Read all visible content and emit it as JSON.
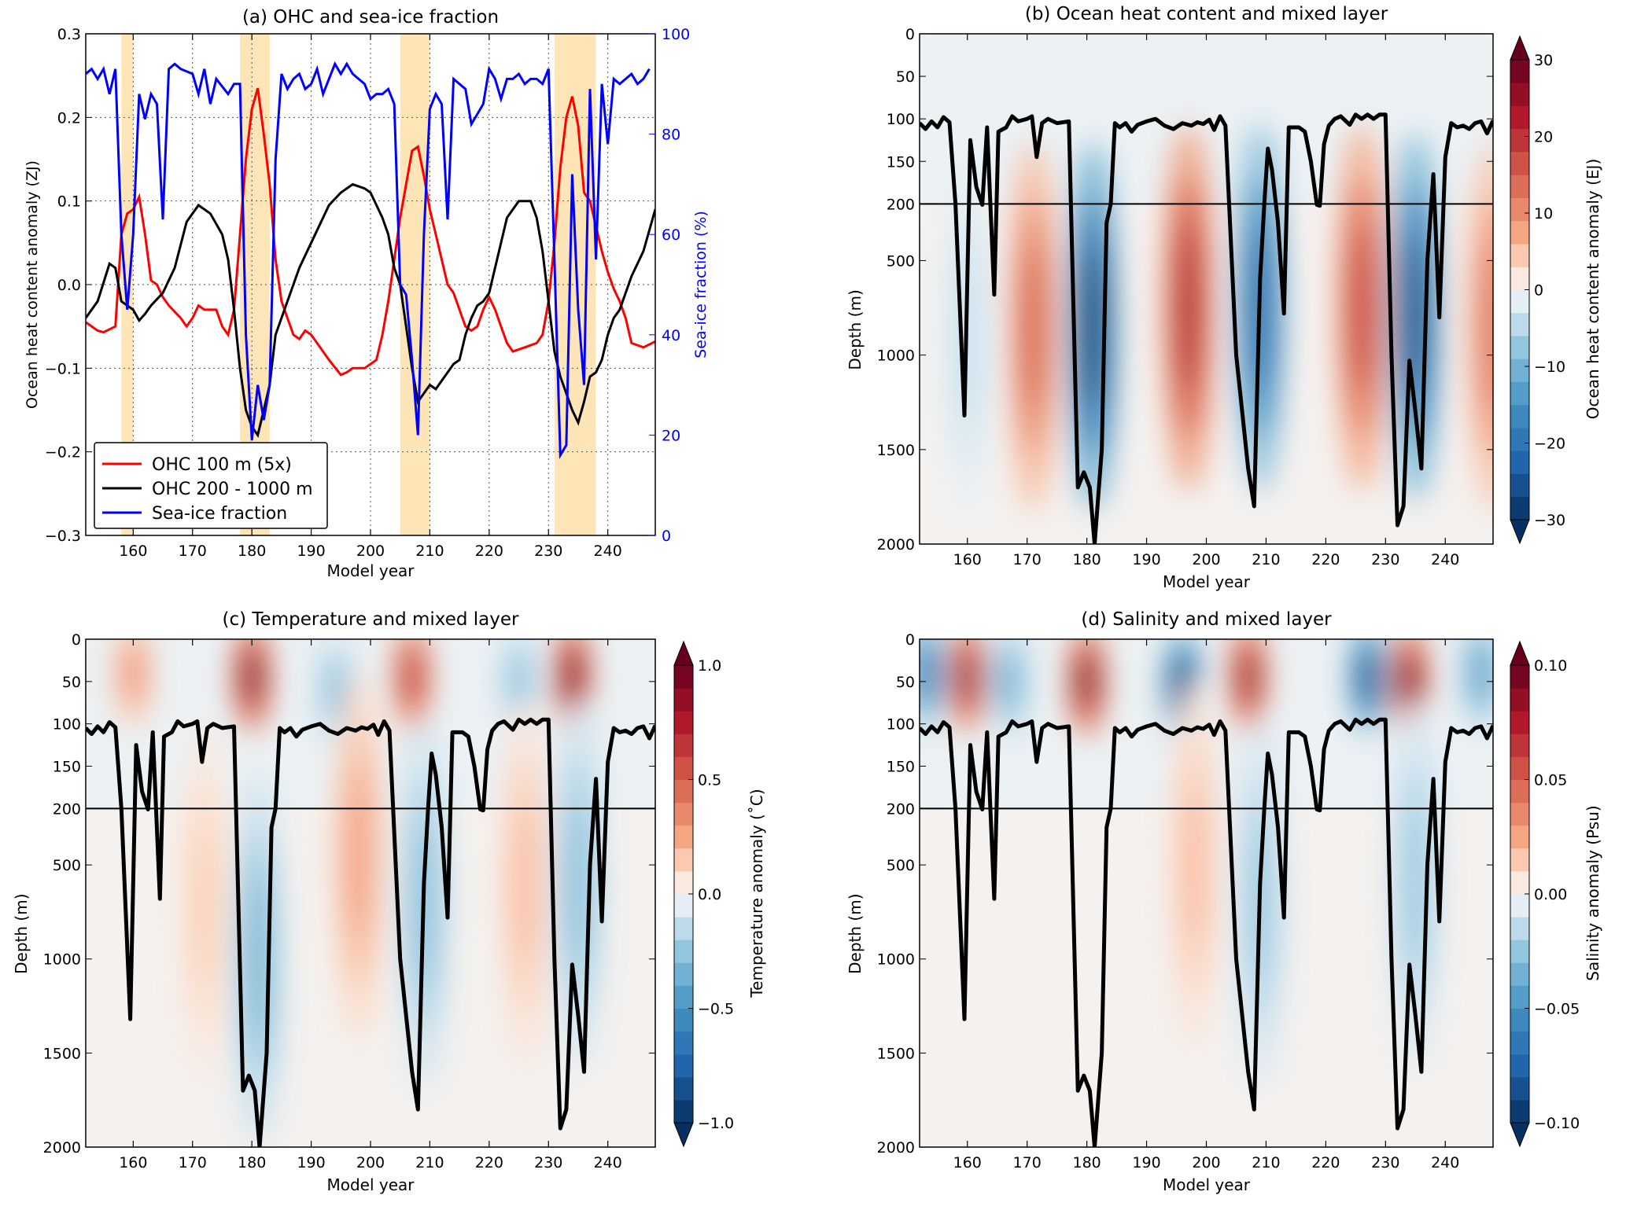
{
  "chart_data": [
    {
      "type": "line",
      "title": "(a) OHC and sea-ice fraction",
      "xlabel": "Model year",
      "ylabel": "Ocean heat content anomaly (ZJ)",
      "ylabel_right": "Sea-ice fraction (%)",
      "xlim": [
        152,
        248
      ],
      "ylim": [
        -0.3,
        0.3
      ],
      "ylim_right": [
        0,
        100
      ],
      "grid": true,
      "legend_placement": "lower-left",
      "xticks": [
        160,
        170,
        180,
        190,
        200,
        210,
        220,
        230,
        240
      ],
      "xtick_labels": [
        "160",
        "170",
        "180",
        "190",
        "200",
        "210",
        "220",
        "230",
        "240"
      ],
      "yticks": [
        -0.3,
        -0.2,
        -0.1,
        0.0,
        0.1,
        0.2,
        0.3
      ],
      "ytick_labels": [
        "−0.3",
        "−0.2",
        "−0.1",
        "0.0",
        "0.1",
        "0.2",
        "0.3"
      ],
      "yticks_right": [
        0,
        20,
        40,
        60,
        80,
        100
      ],
      "ytick_labels_right": [
        "0",
        "20",
        "40",
        "60",
        "80",
        "100"
      ],
      "shaded_periods": [
        [
          158,
          160
        ],
        [
          178,
          183
        ],
        [
          205,
          210
        ],
        [
          231,
          238
        ]
      ],
      "shade_color": "#fde5b8",
      "series": [
        {
          "name": "OHC 100 m (5x)",
          "color": "#ff0000",
          "axis": "left",
          "x": [
            152,
            154,
            155,
            157,
            158,
            159,
            160,
            161,
            162,
            163,
            164,
            165,
            166,
            168,
            169,
            170,
            171,
            172,
            174,
            175,
            176,
            177,
            178,
            179,
            180,
            181,
            182,
            183,
            184,
            185,
            186,
            187,
            188,
            189,
            190,
            192,
            193,
            195,
            196,
            197,
            199,
            201,
            202,
            203,
            204,
            205,
            206,
            207,
            208,
            209,
            210,
            211,
            212,
            213,
            214,
            215,
            216,
            217,
            218,
            219,
            220,
            221,
            222,
            223,
            224,
            226,
            228,
            229,
            230,
            231,
            232,
            233,
            234,
            235,
            236,
            237,
            238,
            239,
            240,
            241,
            242,
            243,
            244,
            246,
            248
          ],
          "y": [
            -0.045,
            -0.055,
            -0.057,
            -0.05,
            0.06,
            0.085,
            0.09,
            0.105,
            0.06,
            0.005,
            0.0,
            -0.015,
            -0.025,
            -0.04,
            -0.05,
            -0.04,
            -0.025,
            -0.03,
            -0.03,
            -0.05,
            -0.06,
            -0.03,
            0.06,
            0.15,
            0.21,
            0.235,
            0.18,
            0.12,
            0.03,
            -0.02,
            -0.04,
            -0.06,
            -0.065,
            -0.055,
            -0.06,
            -0.08,
            -0.09,
            -0.108,
            -0.105,
            -0.1,
            -0.1,
            -0.09,
            -0.06,
            -0.02,
            0.03,
            0.08,
            0.12,
            0.16,
            0.165,
            0.13,
            0.09,
            0.06,
            0.03,
            0.0,
            -0.01,
            -0.03,
            -0.05,
            -0.055,
            -0.05,
            -0.03,
            -0.015,
            -0.03,
            -0.05,
            -0.07,
            -0.08,
            -0.075,
            -0.07,
            -0.06,
            -0.02,
            0.05,
            0.14,
            0.2,
            0.225,
            0.19,
            0.11,
            0.1,
            0.07,
            0.04,
            0.015,
            -0.005,
            -0.02,
            -0.04,
            -0.07,
            -0.075,
            -0.068
          ]
        },
        {
          "name": "OHC 200 - 1000 m",
          "color": "#000000",
          "axis": "left",
          "x": [
            152,
            154,
            156,
            157,
            158,
            160,
            161,
            162,
            163,
            165,
            167,
            169,
            171,
            173,
            175,
            176,
            177,
            178,
            179,
            180,
            181,
            182,
            183,
            184,
            186,
            188,
            190,
            193,
            195,
            197,
            199,
            200,
            202,
            203,
            204,
            205,
            207,
            208,
            209,
            210,
            211,
            212,
            214,
            215,
            216,
            217,
            218,
            219,
            220,
            222,
            223,
            225,
            227,
            228,
            229,
            230,
            231,
            232,
            234,
            235,
            236,
            237,
            238,
            239,
            240,
            241,
            242,
            244,
            246,
            248
          ],
          "y": [
            -0.04,
            -0.02,
            0.025,
            0.02,
            -0.02,
            -0.03,
            -0.043,
            -0.035,
            -0.025,
            -0.01,
            0.02,
            0.075,
            0.095,
            0.085,
            0.06,
            0.03,
            -0.03,
            -0.1,
            -0.15,
            -0.17,
            -0.18,
            -0.15,
            -0.12,
            -0.06,
            -0.02,
            0.02,
            0.05,
            0.095,
            0.11,
            0.12,
            0.115,
            0.11,
            0.08,
            0.06,
            0.02,
            0.0,
            -0.1,
            -0.14,
            -0.13,
            -0.12,
            -0.125,
            -0.115,
            -0.095,
            -0.09,
            -0.06,
            -0.04,
            -0.025,
            -0.02,
            -0.01,
            0.05,
            0.08,
            0.1,
            0.1,
            0.08,
            0.04,
            -0.02,
            -0.08,
            -0.11,
            -0.15,
            -0.165,
            -0.14,
            -0.11,
            -0.105,
            -0.09,
            -0.06,
            -0.04,
            -0.03,
            0.01,
            0.04,
            0.09
          ]
        },
        {
          "name": "Sea-ice fraction",
          "color": "#0000ff",
          "axis": "right",
          "x": [
            152,
            153,
            154,
            155,
            156,
            157,
            158,
            159,
            160,
            161,
            162,
            163,
            164,
            165,
            166,
            167,
            168,
            170,
            171,
            172,
            173,
            174,
            176,
            177,
            178,
            179,
            180,
            181,
            182,
            183,
            184,
            185,
            186,
            187,
            188,
            189,
            190,
            191,
            192,
            193,
            194,
            195,
            196,
            197,
            198,
            199,
            200,
            201,
            202,
            203,
            204,
            205,
            206,
            207,
            208,
            209,
            210,
            211,
            212,
            213,
            214,
            215,
            216,
            217,
            218,
            219,
            220,
            221,
            222,
            223,
            224,
            225,
            226,
            227,
            228,
            229,
            230,
            231,
            232,
            233,
            234,
            235,
            236,
            237,
            238,
            239,
            240,
            241,
            242,
            243,
            244,
            245,
            246,
            247
          ],
          "y": [
            92,
            93,
            91,
            93,
            88,
            93,
            60,
            45,
            60,
            88,
            83,
            88,
            86,
            63,
            93,
            94,
            93,
            92,
            88,
            93,
            86,
            91,
            88,
            90,
            90,
            40,
            19,
            30,
            23,
            30,
            75,
            92,
            89,
            91,
            92,
            89,
            90,
            93,
            88,
            91,
            94,
            92,
            94,
            92,
            91,
            90,
            87,
            88,
            88,
            89,
            86,
            50,
            48,
            35,
            20,
            60,
            85,
            88,
            86,
            63,
            91,
            90,
            89,
            82,
            84,
            86,
            93,
            91,
            87,
            91,
            91,
            92,
            90,
            91,
            91,
            90,
            93,
            55,
            16,
            18,
            72,
            45,
            30,
            89,
            55,
            90,
            78,
            91,
            90,
            91,
            92,
            90,
            91,
            93
          ]
        }
      ]
    },
    {
      "type": "heatmap",
      "title": "(b) Ocean heat content and mixed layer",
      "xlabel": "Model year",
      "ylabel": "Depth (m)",
      "colorbar_label": "Ocean heat content anomaly (EJ)",
      "xlim": [
        152,
        248
      ],
      "ylim": [
        2000,
        0
      ],
      "depth_axis_break": 200,
      "colormap": "RdBu_r",
      "clim": [
        -30,
        30
      ],
      "xticks": [
        160,
        170,
        180,
        190,
        200,
        210,
        220,
        230,
        240
      ],
      "xtick_labels": [
        "160",
        "170",
        "180",
        "190",
        "200",
        "210",
        "220",
        "230",
        "240"
      ],
      "yticks": [
        0,
        50,
        100,
        150,
        200,
        500,
        1000,
        1500,
        2000
      ],
      "ytick_labels": [
        "0",
        "50",
        "100",
        "150",
        "200",
        "500",
        "1000",
        "1500",
        "2000"
      ],
      "cbar_ticks": [
        -30,
        -20,
        -10,
        0,
        10,
        20,
        30
      ],
      "cbar_tick_labels": [
        "−30",
        "−20",
        "−10",
        "0",
        "10",
        "20",
        "30"
      ],
      "anomaly_centers": [
        {
          "year": 171,
          "depth": 850,
          "value": 16
        },
        {
          "year": 181,
          "depth": 850,
          "value": -30
        },
        {
          "year": 197,
          "depth": 750,
          "value": 24
        },
        {
          "year": 209,
          "depth": 750,
          "value": -24
        },
        {
          "year": 226,
          "depth": 750,
          "value": 20
        },
        {
          "year": 235,
          "depth": 800,
          "value": -28
        },
        {
          "year": 248,
          "depth": 850,
          "value": 14
        },
        {
          "year": 160,
          "depth": 900,
          "value": -4
        }
      ]
    },
    {
      "type": "heatmap",
      "title": "(c) Temperature and mixed layer",
      "xlabel": "Model year",
      "ylabel": "Depth (m)",
      "colorbar_label": "Temperature anomaly (˚C)",
      "xlim": [
        152,
        248
      ],
      "ylim": [
        2000,
        0
      ],
      "depth_axis_break": 200,
      "colormap": "RdBu_r",
      "clim": [
        -1.0,
        1.0
      ],
      "xticks": [
        160,
        170,
        180,
        190,
        200,
        210,
        220,
        230,
        240
      ],
      "xtick_labels": [
        "160",
        "170",
        "180",
        "190",
        "200",
        "210",
        "220",
        "230",
        "240"
      ],
      "yticks": [
        0,
        50,
        100,
        150,
        200,
        500,
        1000,
        1500,
        2000
      ],
      "ytick_labels": [
        "0",
        "50",
        "100",
        "150",
        "200",
        "500",
        "1000",
        "1500",
        "2000"
      ],
      "cbar_ticks": [
        -1.0,
        -0.5,
        0.0,
        0.5,
        1.0
      ],
      "cbar_tick_labels": [
        "−1.0",
        "−0.5",
        "0.0",
        "0.5",
        "1.0"
      ],
      "anomaly_centers": [
        {
          "year": 160,
          "depth": 40,
          "value": 0.35
        },
        {
          "year": 180,
          "depth": 45,
          "value": 1.0
        },
        {
          "year": 207,
          "depth": 45,
          "value": 0.75
        },
        {
          "year": 234,
          "depth": 45,
          "value": 1.0
        },
        {
          "year": 194,
          "depth": 60,
          "value": -0.3
        },
        {
          "year": 225,
          "depth": 50,
          "value": -0.3
        },
        {
          "year": 181,
          "depth": 1000,
          "value": -0.35
        },
        {
          "year": 198,
          "depth": 450,
          "value": 0.3
        },
        {
          "year": 209,
          "depth": 700,
          "value": -0.3
        },
        {
          "year": 235,
          "depth": 600,
          "value": -0.3
        },
        {
          "year": 172,
          "depth": 700,
          "value": 0.15
        },
        {
          "year": 226,
          "depth": 600,
          "value": 0.2
        }
      ]
    },
    {
      "type": "heatmap",
      "title": "(d) Salinity and mixed layer",
      "xlabel": "Model year",
      "ylabel": "Depth (m)",
      "colorbar_label": "Salinity anomaly (Psu)",
      "xlim": [
        152,
        248
      ],
      "ylim": [
        2000,
        0
      ],
      "depth_axis_break": 200,
      "colormap": "RdBu_r",
      "clim": [
        -0.1,
        0.1
      ],
      "xticks": [
        160,
        170,
        180,
        190,
        200,
        210,
        220,
        230,
        240
      ],
      "xtick_labels": [
        "160",
        "170",
        "180",
        "190",
        "200",
        "210",
        "220",
        "230",
        "240"
      ],
      "yticks": [
        0,
        50,
        100,
        150,
        200,
        500,
        1000,
        1500,
        2000
      ],
      "ytick_labels": [
        "0",
        "50",
        "100",
        "150",
        "200",
        "500",
        "1000",
        "1500",
        "2000"
      ],
      "cbar_ticks": [
        -0.1,
        -0.05,
        0.0,
        0.05,
        0.1
      ],
      "cbar_tick_labels": [
        "−0.10",
        "−0.05",
        "0.00",
        "0.05",
        "0.10"
      ],
      "anomaly_centers": [
        {
          "year": 153,
          "depth": 40,
          "value": -0.07
        },
        {
          "year": 160,
          "depth": 45,
          "value": 0.09
        },
        {
          "year": 167,
          "depth": 50,
          "value": -0.04
        },
        {
          "year": 180,
          "depth": 50,
          "value": 0.1
        },
        {
          "year": 196,
          "depth": 55,
          "value": -0.1
        },
        {
          "year": 207,
          "depth": 45,
          "value": 0.09
        },
        {
          "year": 227,
          "depth": 45,
          "value": -0.09
        },
        {
          "year": 234,
          "depth": 50,
          "value": 0.1
        },
        {
          "year": 246,
          "depth": 40,
          "value": -0.05
        },
        {
          "year": 198,
          "depth": 500,
          "value": 0.02
        },
        {
          "year": 209,
          "depth": 700,
          "value": -0.025
        },
        {
          "year": 235,
          "depth": 600,
          "value": -0.025
        }
      ]
    }
  ],
  "mixed_layer_depth": {
    "color": "#000000",
    "year": [
      152,
      153,
      154,
      155,
      156,
      157,
      158,
      159.5,
      160.5,
      161.5,
      162.5,
      163.3,
      164.5,
      165.2,
      166.5,
      167.5,
      168.5,
      170,
      170.8,
      171.6,
      172.5,
      173.5,
      175,
      177,
      178.5,
      179.5,
      180.5,
      181.3,
      182.5,
      183.3,
      184,
      184.7,
      185.5,
      186.5,
      187.5,
      188.5,
      190,
      191.5,
      193,
      194.5,
      196,
      197.5,
      198.5,
      199.5,
      200.5,
      201.3,
      202.3,
      203.2,
      205,
      207,
      208,
      209,
      209.7,
      210.3,
      211,
      212,
      213,
      213.8,
      215.5,
      216.5,
      217.5,
      218.5,
      219,
      219.7,
      220.5,
      221.5,
      222.5,
      224,
      225,
      226,
      227,
      228,
      229,
      230,
      231,
      232,
      233,
      234,
      235,
      236,
      237,
      238,
      239,
      240,
      241,
      242,
      243,
      244,
      245,
      246,
      247,
      248
    ],
    "depth": [
      105,
      112,
      103,
      110,
      98,
      104,
      200,
      1320,
      125,
      180,
      205,
      110,
      680,
      115,
      110,
      97,
      103,
      100,
      97,
      145,
      105,
      100,
      105,
      103,
      1700,
      1620,
      1700,
      2000,
      1500,
      300,
      200,
      105,
      110,
      105,
      115,
      107,
      103,
      100,
      108,
      112,
      105,
      108,
      104,
      106,
      101,
      113,
      97,
      108,
      1000,
      1600,
      1800,
      600,
      200,
      135,
      160,
      300,
      780,
      110,
      110,
      115,
      150,
      205,
      210,
      130,
      108,
      100,
      97,
      107,
      95,
      100,
      95,
      100,
      95,
      95,
      1000,
      1900,
      1800,
      1030,
      1300,
      1600,
      500,
      165,
      800,
      145,
      105,
      110,
      108,
      112,
      105,
      103,
      117,
      102
    ]
  }
}
